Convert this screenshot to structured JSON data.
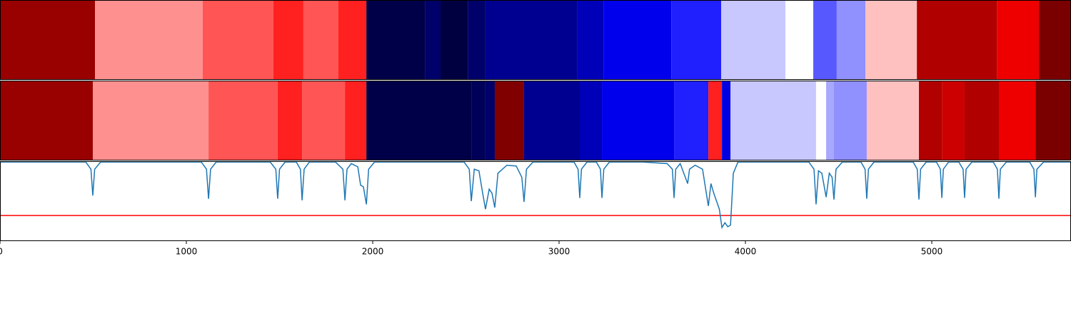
{
  "chart_data": {
    "type": "segmentation",
    "xlim": [
      0,
      5747
    ],
    "xticks": [
      0,
      1000,
      2000,
      3000,
      4000,
      5000
    ],
    "panels": [
      {
        "type": "segments",
        "boundaries": [
          0,
          510,
          1088,
          1467,
          1628,
          1816,
          1966,
          2280,
          2364,
          2510,
          2605,
          3096,
          3238,
          3602,
          3870,
          4215,
          4364,
          4490,
          4644,
          4920,
          5349,
          5575,
          5747
        ],
        "colors": [
          "#990000",
          "#ff9090",
          "#ff5555",
          "#ff2020",
          "#ff5555",
          "#ff2020",
          "#000048",
          "#00006a",
          "#000040",
          "#00006a",
          "#000090",
          "#0000b8",
          "#0000ec",
          "#2020ff",
          "#c8c8ff",
          "#ffffff",
          "#5858ff",
          "#9090ff",
          "#ffc0c0",
          "#b00000",
          "#ee0000",
          "#7a0000"
        ]
      },
      {
        "type": "segments",
        "boundaries": [
          0,
          498,
          1119,
          1490,
          1621,
          1851,
          1966,
          2529,
          2605,
          2655,
          2812,
          3111,
          3230,
          3617,
          3801,
          3874,
          3920,
          4379,
          4433,
          4475,
          4651,
          4931,
          5054,
          5176,
          5360,
          5556,
          5747
        ],
        "colors": [
          "#990000",
          "#ff9090",
          "#ff5555",
          "#ff2020",
          "#ff5555",
          "#ff2020",
          "#000048",
          "#000058",
          "#00006a",
          "#800000",
          "#000090",
          "#0000b8",
          "#0000ec",
          "#2020ff",
          "#ff2020",
          "#0000e0",
          "#c8c8ff",
          "#ffffff",
          "#a8a8ff",
          "#9090ff",
          "#ffc0c0",
          "#b00000",
          "#cc0000",
          "#b00000",
          "#ee0000",
          "#7a0000"
        ]
      },
      {
        "type": "line",
        "color": "#1f77b4",
        "ylim": [
          0,
          1
        ],
        "threshold": 0.32,
        "threshold_color": "#ff0000",
        "x": [
          0,
          460,
          488,
          498,
          508,
          540,
          1080,
          1108,
          1119,
          1130,
          1160,
          1450,
          1480,
          1490,
          1500,
          1530,
          1590,
          1612,
          1621,
          1632,
          1660,
          1800,
          1840,
          1851,
          1862,
          1885,
          1920,
          1935,
          1950,
          1966,
          1978,
          2010,
          2490,
          2518,
          2529,
          2545,
          2570,
          2590,
          2605,
          2625,
          2640,
          2655,
          2672,
          2720,
          2770,
          2800,
          2812,
          2825,
          2860,
          3080,
          3102,
          3111,
          3120,
          3150,
          3200,
          3222,
          3230,
          3240,
          3270,
          3450,
          3580,
          3608,
          3617,
          3626,
          3650,
          3690,
          3700,
          3730,
          3770,
          3790,
          3801,
          3815,
          3830,
          3860,
          3874,
          3890,
          3905,
          3920,
          3935,
          3960,
          4340,
          4368,
          4379,
          4392,
          4410,
          4433,
          4450,
          4465,
          4475,
          4486,
          4520,
          4620,
          4642,
          4651,
          4660,
          4690,
          4900,
          4922,
          4931,
          4940,
          4970,
          5025,
          5046,
          5054,
          5062,
          5090,
          5145,
          5168,
          5176,
          5184,
          5215,
          5330,
          5352,
          5360,
          5368,
          5400,
          5525,
          5548,
          5556,
          5564,
          5600,
          5747
        ],
        "values": [
          0.99,
          0.99,
          0.9,
          0.57,
          0.9,
          0.99,
          0.99,
          0.9,
          0.53,
          0.9,
          0.99,
          0.99,
          0.9,
          0.53,
          0.9,
          0.99,
          0.99,
          0.9,
          0.51,
          0.9,
          0.99,
          0.99,
          0.9,
          0.51,
          0.9,
          0.97,
          0.93,
          0.7,
          0.68,
          0.46,
          0.9,
          0.99,
          0.99,
          0.9,
          0.5,
          0.9,
          0.88,
          0.6,
          0.4,
          0.65,
          0.6,
          0.42,
          0.85,
          0.95,
          0.94,
          0.8,
          0.49,
          0.9,
          0.99,
          0.99,
          0.9,
          0.54,
          0.9,
          0.99,
          0.99,
          0.9,
          0.54,
          0.9,
          0.99,
          0.99,
          0.97,
          0.9,
          0.54,
          0.9,
          0.97,
          0.72,
          0.9,
          0.95,
          0.9,
          0.6,
          0.44,
          0.72,
          0.6,
          0.4,
          0.17,
          0.23,
          0.18,
          0.2,
          0.85,
          0.99,
          0.99,
          0.9,
          0.46,
          0.88,
          0.85,
          0.55,
          0.85,
          0.8,
          0.52,
          0.9,
          0.99,
          0.99,
          0.9,
          0.53,
          0.9,
          0.99,
          0.99,
          0.9,
          0.52,
          0.9,
          0.99,
          0.99,
          0.9,
          0.54,
          0.9,
          0.99,
          0.99,
          0.9,
          0.54,
          0.9,
          0.99,
          0.99,
          0.9,
          0.53,
          0.9,
          0.99,
          0.99,
          0.9,
          0.55,
          0.9,
          0.99,
          0.99
        ]
      }
    ]
  }
}
